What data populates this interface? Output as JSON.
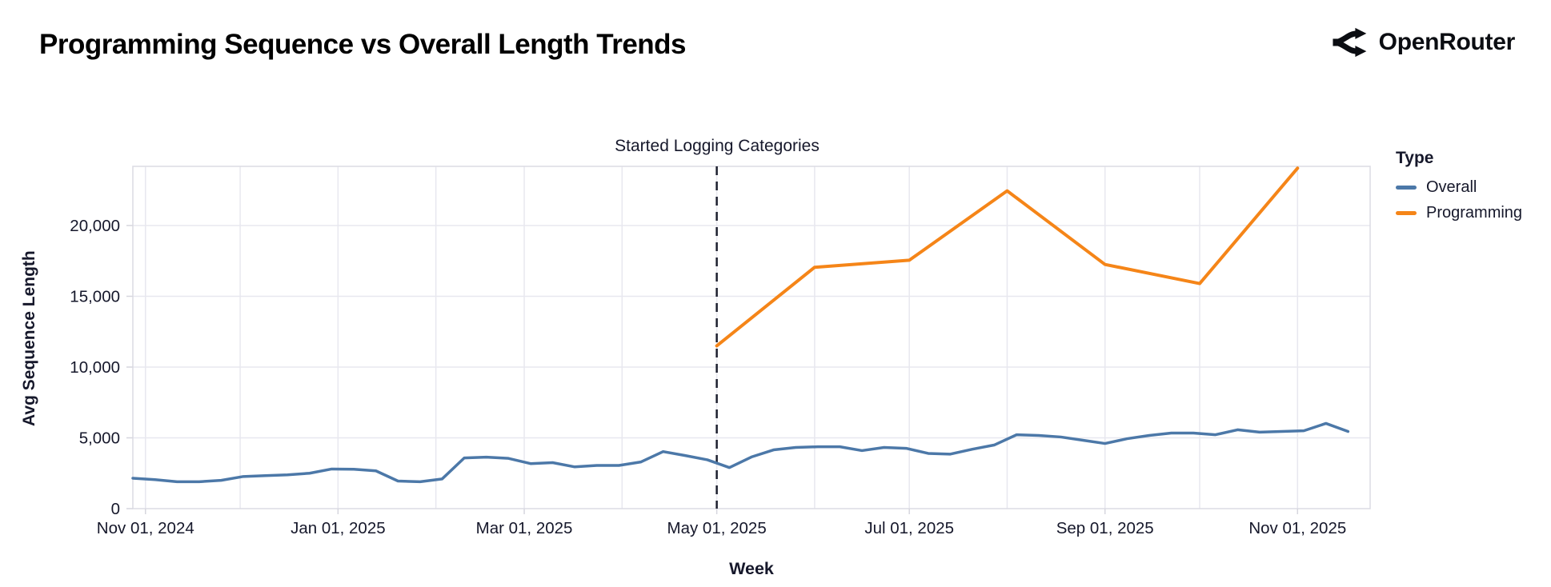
{
  "header": {
    "title": "Programming Sequence vs Overall Length Trends",
    "brand": "OpenRouter"
  },
  "legend": {
    "title": "Type",
    "items": [
      {
        "label": "Overall",
        "color": "#4c78a8"
      },
      {
        "label": "Programming",
        "color": "#f58518"
      }
    ]
  },
  "annotation": {
    "label": "Started Logging Categories",
    "date": "2025-05-01"
  },
  "axes": {
    "x_title": "Week",
    "y_title": "Avg Sequence Length",
    "x_ticks": [
      {
        "label": "Nov 01, 2024",
        "date": "2024-11-01"
      },
      {
        "label": "Jan 01, 2025",
        "date": "2025-01-01"
      },
      {
        "label": "Mar 01, 2025",
        "date": "2025-03-01"
      },
      {
        "label": "May 01, 2025",
        "date": "2025-05-01"
      },
      {
        "label": "Jul 01, 2025",
        "date": "2025-07-01"
      },
      {
        "label": "Sep 01, 2025",
        "date": "2025-09-01"
      },
      {
        "label": "Nov 01, 2025",
        "date": "2025-11-01"
      }
    ],
    "y_ticks": [
      {
        "label": "0",
        "value": 0
      },
      {
        "label": "5,000",
        "value": 5000
      },
      {
        "label": "10,000",
        "value": 10000
      },
      {
        "label": "15,000",
        "value": 15000
      },
      {
        "label": "20,000",
        "value": 20000
      }
    ]
  },
  "chart_data": {
    "type": "line",
    "title": "Programming Sequence vs Overall Length Trends",
    "xlabel": "Week",
    "ylabel": "Avg Sequence Length",
    "x_domain": [
      "2024-10-28",
      "2025-11-24"
    ],
    "ylim": [
      0,
      24180
    ],
    "grid": true,
    "legend_position": "right",
    "colors": {
      "overall": "#4c78a8",
      "programming": "#f58518"
    },
    "vline": {
      "date": "2025-05-01",
      "label": "Started Logging Categories",
      "style": "dashed",
      "color": "#1c1f2e"
    },
    "series": [
      {
        "name": "Overall",
        "color": "#4c78a8",
        "cadence": "weekly",
        "start_date": "2024-10-28",
        "interval_days": 7,
        "values": [
          2150,
          2050,
          1900,
          1900,
          2000,
          2270,
          2330,
          2390,
          2500,
          2800,
          2780,
          2670,
          1950,
          1900,
          2100,
          3580,
          3640,
          3550,
          3180,
          3250,
          2950,
          3050,
          3050,
          3300,
          4030,
          3750,
          3450,
          2900,
          3650,
          4150,
          4320,
          4370,
          4370,
          4100,
          4320,
          4260,
          3900,
          3850,
          4200,
          4500,
          5220,
          5170,
          5060,
          4830,
          4600,
          4940,
          5170,
          5340,
          5340,
          5220,
          5570,
          5400,
          5450,
          5500,
          6020,
          5450
        ]
      },
      {
        "name": "Programming",
        "color": "#f58518",
        "cadence": "monthly",
        "dates": [
          "2025-05-01",
          "2025-06-01",
          "2025-07-01",
          "2025-08-01",
          "2025-09-01",
          "2025-10-01",
          "2025-11-01"
        ],
        "values": [
          11500,
          17050,
          17550,
          22450,
          17250,
          15900,
          24050
        ]
      }
    ]
  }
}
